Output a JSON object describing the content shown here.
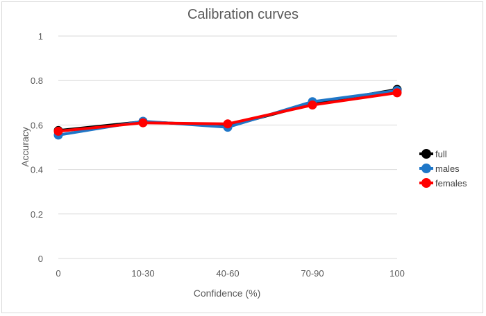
{
  "chart_data": {
    "type": "line",
    "title": "Calibration curves",
    "xlabel": "Confidence (%)",
    "ylabel": "Accuracy",
    "categories": [
      "0",
      "10-30",
      "40-60",
      "70-90",
      "100"
    ],
    "ylim": [
      0,
      1
    ],
    "yticks": [
      0,
      0.2,
      0.4,
      0.6,
      0.8,
      1
    ],
    "ytick_labels": [
      "0",
      "0.2",
      "0.4",
      "0.6",
      "0.8",
      "1"
    ],
    "grid": true,
    "legend_position": "right",
    "series": [
      {
        "name": "full",
        "color": "#000000",
        "values": [
          0.575,
          0.615,
          0.595,
          0.695,
          0.76
        ]
      },
      {
        "name": "males",
        "color": "#1f77c8",
        "values": [
          0.555,
          0.617,
          0.59,
          0.705,
          0.755
        ]
      },
      {
        "name": "females",
        "color": "#ff0000",
        "values": [
          0.572,
          0.61,
          0.605,
          0.69,
          0.745
        ]
      }
    ]
  }
}
